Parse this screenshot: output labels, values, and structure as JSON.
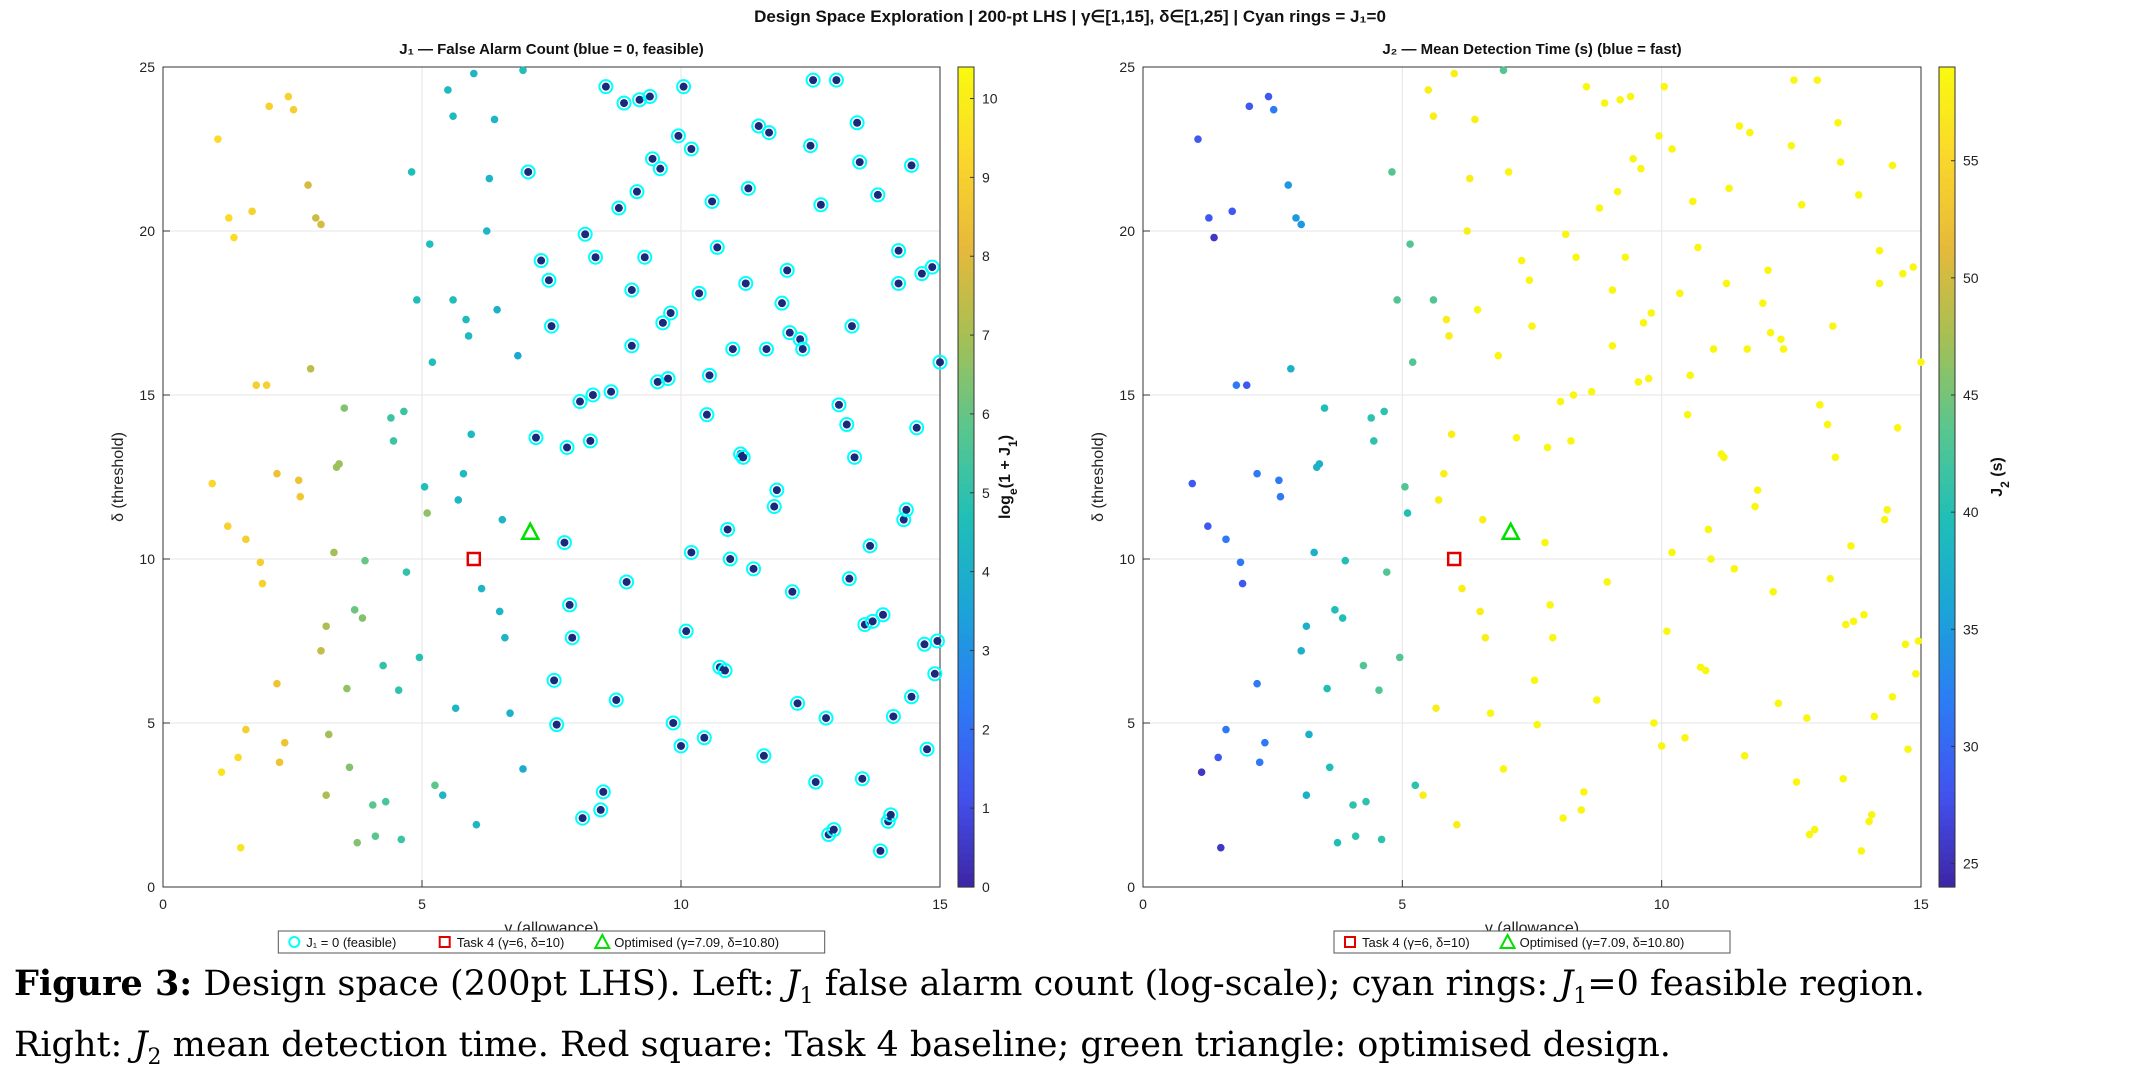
{
  "suptitle": "Design Space Exploration  |  200-pt LHS  |  γ∈[1,15], δ∈[1,25]  |  Cyan rings = J₁=0",
  "caption": {
    "label": "Figure 3:",
    "text_a": " Design space (200pt LHS). Left: ",
    "j1": "J",
    "j1_sub": "1",
    "text_b": " false alarm count (log-scale); cyan rings: ",
    "j1b": "J",
    "j1b_sub": "1",
    "text_c": "=0 feasible region.",
    "text_d": "Right: ",
    "j2": "J",
    "j2_sub": "2",
    "text_e": " mean detection time. Red square: Task 4 baseline; green triangle: optimised design."
  },
  "colors": {
    "feasible_ring": "#00ffff",
    "task4_marker": "#e00000",
    "optimised_marker": "#00e000",
    "colormap": [
      "#3e26a8",
      "#4253ef",
      "#2c7cf5",
      "#1ba4d8",
      "#1fbfb8",
      "#59c68e",
      "#a6bf54",
      "#e7b93a",
      "#fbd82b",
      "#f9fb0e"
    ]
  },
  "chart_data": [
    {
      "type": "scatter",
      "title": "J₁ — False Alarm Count  (blue = 0, feasible)",
      "xlabel": "γ  (allowance)",
      "ylabel": "δ  (threshold)",
      "xlim": [
        0,
        15
      ],
      "ylim": [
        0,
        25
      ],
      "xticks": [
        0,
        5,
        10,
        15
      ],
      "yticks": [
        0,
        5,
        10,
        15,
        20,
        25
      ],
      "grid": true,
      "colorbar": {
        "label": "log_e(1 + J_1)",
        "range": [
          0,
          10.4
        ],
        "ticks": [
          0,
          1,
          2,
          3,
          4,
          5,
          6,
          7,
          8,
          9,
          10
        ]
      },
      "color_by": "log1p_J1",
      "legend": [
        "J₁ = 0 (feasible)",
        "Task 4 (γ=6, δ=10)",
        "Optimised (γ=7.09, δ=10.80)"
      ],
      "legend_position": "bottom-center",
      "markers": {
        "task4": [
          6,
          10
        ],
        "optimised": [
          7.09,
          10.8
        ]
      }
    },
    {
      "type": "scatter",
      "title": "J₂ — Mean Detection Time (s)  (blue = fast)",
      "xlabel": "γ  (allowance)",
      "ylabel": "δ  (threshold)",
      "xlim": [
        0,
        15
      ],
      "ylim": [
        0,
        25
      ],
      "xticks": [
        0,
        5,
        10,
        15
      ],
      "yticks": [
        0,
        5,
        10,
        15,
        20,
        25
      ],
      "grid": true,
      "colorbar": {
        "label": "J_2 (s)",
        "range": [
          24,
          59
        ],
        "ticks": [
          25,
          30,
          35,
          40,
          45,
          50,
          55
        ]
      },
      "color_by": "J2",
      "legend": [
        "Task 4 (γ=6, δ=10)",
        "Optimised (γ=7.09, δ=10.80)"
      ],
      "legend_position": "bottom-center",
      "markers": {
        "task4": [
          6,
          10
        ],
        "optimised": [
          7.09,
          10.8
        ]
      }
    }
  ],
  "points": [
    [
      1.06,
      22.8,
      9.3,
      0
    ],
    [
      2.05,
      23.8,
      9.0,
      0
    ],
    [
      2.42,
      24.1,
      9.0,
      0
    ],
    [
      2.52,
      23.7,
      8.9,
      0
    ],
    [
      2.8,
      21.4,
      7.8,
      0
    ],
    [
      1.27,
      20.4,
      9.3,
      0
    ],
    [
      1.72,
      20.6,
      9.0,
      0
    ],
    [
      1.37,
      19.8,
      9.4,
      0
    ],
    [
      2.95,
      20.4,
      7.6,
      0
    ],
    [
      3.05,
      20.2,
      7.8,
      0
    ],
    [
      1.8,
      15.3,
      8.9,
      0
    ],
    [
      2.0,
      15.3,
      9.0,
      0
    ],
    [
      2.85,
      15.8,
      7.3,
      0
    ],
    [
      0.95,
      12.3,
      9.2,
      0
    ],
    [
      2.2,
      12.6,
      8.4,
      0
    ],
    [
      2.62,
      12.4,
      8.5,
      0
    ],
    [
      2.65,
      11.9,
      8.6,
      0
    ],
    [
      1.25,
      11.0,
      9.0,
      0
    ],
    [
      1.6,
      10.6,
      8.9,
      0
    ],
    [
      1.88,
      9.9,
      8.9,
      0
    ],
    [
      1.92,
      9.25,
      9.0,
      0
    ],
    [
      1.13,
      3.5,
      9.6,
      0
    ],
    [
      1.45,
      3.95,
      9.3,
      0
    ],
    [
      1.5,
      1.2,
      9.6,
      0
    ],
    [
      1.6,
      4.8,
      8.9,
      0
    ],
    [
      2.2,
      6.2,
      8.5,
      0
    ],
    [
      2.25,
      3.8,
      8.5,
      0
    ],
    [
      2.35,
      4.4,
      8.5,
      0
    ],
    [
      3.15,
      7.95,
      7.0,
      0
    ],
    [
      3.05,
      7.2,
      7.5,
      0
    ],
    [
      3.15,
      2.8,
      7.0,
      0
    ],
    [
      3.2,
      4.65,
      6.9,
      0
    ],
    [
      3.3,
      10.2,
      6.9,
      0
    ],
    [
      3.35,
      12.8,
      6.8,
      0
    ],
    [
      3.4,
      12.9,
      6.8,
      0
    ],
    [
      3.5,
      14.6,
      6.4,
      0
    ],
    [
      3.55,
      6.05,
      6.6,
      0
    ],
    [
      3.6,
      3.65,
      6.4,
      0
    ],
    [
      3.7,
      8.45,
      6.1,
      0
    ],
    [
      3.75,
      1.35,
      6.4,
      0
    ],
    [
      3.85,
      8.2,
      6.4,
      0
    ],
    [
      3.9,
      9.95,
      6.0,
      0
    ],
    [
      4.05,
      2.5,
      5.8,
      0
    ],
    [
      4.1,
      1.55,
      5.8,
      0
    ],
    [
      4.3,
      2.6,
      5.4,
      0
    ],
    [
      4.25,
      6.75,
      5.0,
      0
    ],
    [
      4.4,
      14.3,
      5.2,
      0
    ],
    [
      4.45,
      13.6,
      5.2,
      0
    ],
    [
      4.55,
      6.0,
      5.0,
      0
    ],
    [
      4.6,
      1.45,
      5.2,
      0
    ],
    [
      4.65,
      14.5,
      5.2,
      0
    ],
    [
      4.7,
      9.6,
      5.0,
      0
    ],
    [
      4.8,
      21.8,
      4.6,
      0
    ],
    [
      4.9,
      17.9,
      4.6,
      0
    ],
    [
      4.95,
      7.0,
      4.8,
      0
    ],
    [
      5.05,
      12.2,
      4.6,
      0
    ],
    [
      5.1,
      11.4,
      6.6,
      0
    ],
    [
      5.15,
      19.6,
      4.6,
      0
    ],
    [
      5.2,
      16.0,
      4.6,
      0
    ],
    [
      5.25,
      3.1,
      5.8,
      0
    ],
    [
      5.4,
      2.8,
      4.2,
      0
    ],
    [
      5.5,
      24.3,
      4.4,
      0
    ],
    [
      5.6,
      23.5,
      4.4,
      0
    ],
    [
      5.6,
      17.9,
      4.6,
      0
    ],
    [
      5.65,
      5.45,
      4.2,
      0
    ],
    [
      5.7,
      11.8,
      4.2,
      0
    ],
    [
      5.8,
      12.6,
      4.4,
      0
    ],
    [
      5.85,
      17.3,
      4.4,
      0
    ],
    [
      5.9,
      16.8,
      4.4,
      0
    ],
    [
      5.95,
      13.8,
      4.4,
      0
    ],
    [
      6.0,
      24.8,
      4.2,
      0
    ],
    [
      6.05,
      1.9,
      4.2,
      0
    ],
    [
      6.15,
      9.1,
      4.2,
      0
    ],
    [
      6.25,
      20.0,
      4.2,
      0
    ],
    [
      6.3,
      21.6,
      4.2,
      0
    ],
    [
      6.4,
      23.4,
      4.2,
      0
    ],
    [
      6.45,
      17.6,
      4.0,
      0
    ],
    [
      6.5,
      8.4,
      4.2,
      0
    ],
    [
      6.55,
      11.2,
      4.2,
      0
    ],
    [
      6.7,
      5.3,
      4.0,
      0
    ],
    [
      6.6,
      7.6,
      4.2,
      0
    ],
    [
      6.85,
      16.2,
      3.6,
      0
    ],
    [
      6.95,
      24.9,
      4.6,
      0
    ],
    [
      6.95,
      3.6,
      3.8,
      0
    ],
    [
      7.05,
      21.8,
      3.8,
      1
    ],
    [
      7.2,
      13.7,
      3.8,
      1
    ],
    [
      7.3,
      19.1,
      3.8,
      1
    ],
    [
      7.45,
      18.5,
      3.8,
      1
    ],
    [
      7.5,
      17.1,
      3.8,
      1
    ],
    [
      7.55,
      6.3,
      3.8,
      1
    ],
    [
      7.6,
      4.95,
      3.8,
      1
    ],
    [
      7.75,
      10.5,
      3.8,
      1
    ],
    [
      7.8,
      13.4,
      3.8,
      1
    ],
    [
      7.85,
      8.6,
      3.8,
      1
    ],
    [
      7.9,
      7.6,
      3.8,
      1
    ],
    [
      8.05,
      14.8,
      3.8,
      1
    ],
    [
      8.1,
      2.1,
      3.8,
      1
    ],
    [
      8.15,
      19.9,
      3.8,
      1
    ],
    [
      8.25,
      13.6,
      3.8,
      1
    ],
    [
      8.3,
      15.0,
      3.8,
      1
    ],
    [
      8.35,
      19.2,
      3.8,
      1
    ],
    [
      8.45,
      2.35,
      3.8,
      1
    ],
    [
      8.5,
      2.9,
      3.8,
      1
    ],
    [
      8.55,
      24.4,
      3.8,
      1
    ],
    [
      8.65,
      15.1,
      3.8,
      1
    ],
    [
      8.75,
      5.7,
      3.8,
      1
    ],
    [
      8.8,
      20.7,
      3.8,
      1
    ],
    [
      8.9,
      23.9,
      3.8,
      1
    ],
    [
      8.95,
      9.3,
      3.8,
      1
    ],
    [
      9.05,
      16.5,
      3.8,
      1
    ],
    [
      9.05,
      18.2,
      3.8,
      1
    ],
    [
      9.15,
      21.2,
      3.8,
      1
    ],
    [
      9.2,
      24.0,
      3.8,
      1
    ],
    [
      9.3,
      19.2,
      3.8,
      1
    ],
    [
      9.4,
      24.1,
      3.8,
      1
    ],
    [
      9.45,
      22.2,
      3.8,
      1
    ],
    [
      9.55,
      15.4,
      3.8,
      1
    ],
    [
      9.6,
      21.9,
      3.8,
      1
    ],
    [
      9.65,
      17.2,
      3.8,
      1
    ],
    [
      9.75,
      15.5,
      3.8,
      1
    ],
    [
      9.8,
      17.5,
      3.8,
      1
    ],
    [
      9.85,
      5.0,
      3.8,
      1
    ],
    [
      9.95,
      22.9,
      3.8,
      1
    ],
    [
      10.0,
      4.3,
      3.8,
      1
    ],
    [
      10.05,
      24.4,
      3.8,
      1
    ],
    [
      10.1,
      7.8,
      3.8,
      1
    ],
    [
      10.2,
      22.5,
      3.8,
      1
    ],
    [
      10.2,
      10.2,
      3.8,
      1
    ],
    [
      10.35,
      18.1,
      3.8,
      1
    ],
    [
      10.45,
      4.55,
      3.8,
      1
    ],
    [
      10.5,
      14.4,
      3.8,
      1
    ],
    [
      10.55,
      15.6,
      3.8,
      1
    ],
    [
      10.6,
      20.9,
      3.8,
      1
    ],
    [
      10.7,
      19.5,
      3.8,
      1
    ],
    [
      10.75,
      6.7,
      3.8,
      1
    ],
    [
      10.85,
      6.6,
      3.8,
      1
    ],
    [
      10.9,
      10.9,
      3.8,
      1
    ],
    [
      10.95,
      10.0,
      3.8,
      1
    ],
    [
      11.0,
      16.4,
      3.8,
      1
    ],
    [
      11.15,
      13.2,
      3.8,
      1
    ],
    [
      11.2,
      13.1,
      3.8,
      1
    ],
    [
      11.25,
      18.4,
      3.8,
      1
    ],
    [
      11.3,
      21.3,
      3.8,
      1
    ],
    [
      11.4,
      9.7,
      3.8,
      1
    ],
    [
      11.5,
      23.2,
      3.8,
      1
    ],
    [
      11.6,
      4.0,
      3.8,
      1
    ],
    [
      11.65,
      16.4,
      3.8,
      1
    ],
    [
      11.7,
      23.0,
      3.8,
      1
    ],
    [
      11.8,
      11.6,
      3.8,
      1
    ],
    [
      11.85,
      12.1,
      3.8,
      1
    ],
    [
      11.95,
      17.8,
      3.8,
      1
    ],
    [
      12.05,
      18.8,
      3.8,
      1
    ],
    [
      12.1,
      16.9,
      3.8,
      1
    ],
    [
      12.15,
      9.0,
      3.8,
      1
    ],
    [
      12.25,
      5.6,
      3.8,
      1
    ],
    [
      12.3,
      16.7,
      3.8,
      1
    ],
    [
      12.35,
      16.4,
      3.8,
      1
    ],
    [
      12.5,
      22.6,
      3.8,
      1
    ],
    [
      12.55,
      24.6,
      3.8,
      1
    ],
    [
      12.6,
      3.2,
      3.8,
      1
    ],
    [
      12.7,
      20.8,
      3.8,
      1
    ],
    [
      12.8,
      5.15,
      3.8,
      1
    ],
    [
      12.85,
      1.6,
      3.8,
      1
    ],
    [
      12.95,
      1.75,
      3.8,
      1
    ],
    [
      13.0,
      24.6,
      3.8,
      1
    ],
    [
      13.05,
      14.7,
      3.8,
      1
    ],
    [
      13.2,
      14.1,
      3.8,
      1
    ],
    [
      13.25,
      9.4,
      3.8,
      1
    ],
    [
      13.3,
      17.1,
      3.8,
      1
    ],
    [
      13.35,
      13.1,
      3.8,
      1
    ],
    [
      13.4,
      23.3,
      3.8,
      1
    ],
    [
      13.45,
      22.1,
      3.8,
      1
    ],
    [
      13.5,
      3.3,
      3.8,
      1
    ],
    [
      13.55,
      8.0,
      3.8,
      1
    ],
    [
      13.65,
      10.4,
      3.8,
      1
    ],
    [
      13.7,
      8.1,
      3.8,
      1
    ],
    [
      13.8,
      21.1,
      3.8,
      1
    ],
    [
      13.85,
      1.1,
      3.8,
      1
    ],
    [
      13.9,
      8.3,
      3.8,
      1
    ],
    [
      14.0,
      2.0,
      3.8,
      1
    ],
    [
      14.05,
      2.2,
      3.8,
      1
    ],
    [
      14.1,
      5.2,
      3.8,
      1
    ],
    [
      14.2,
      19.4,
      3.8,
      1
    ],
    [
      14.2,
      18.4,
      3.8,
      1
    ],
    [
      14.3,
      11.2,
      3.8,
      1
    ],
    [
      14.35,
      11.5,
      3.8,
      1
    ],
    [
      14.45,
      22.0,
      3.8,
      1
    ],
    [
      14.45,
      5.8,
      3.8,
      1
    ],
    [
      14.55,
      14.0,
      3.8,
      1
    ],
    [
      14.65,
      18.7,
      3.8,
      1
    ],
    [
      14.7,
      7.4,
      3.8,
      1
    ],
    [
      14.75,
      4.2,
      3.8,
      1
    ],
    [
      14.85,
      18.9,
      3.8,
      1
    ],
    [
      14.9,
      6.5,
      3.8,
      1
    ],
    [
      14.95,
      7.5,
      3.8,
      1
    ],
    [
      15.0,
      16.0,
      3.8,
      1
    ]
  ]
}
